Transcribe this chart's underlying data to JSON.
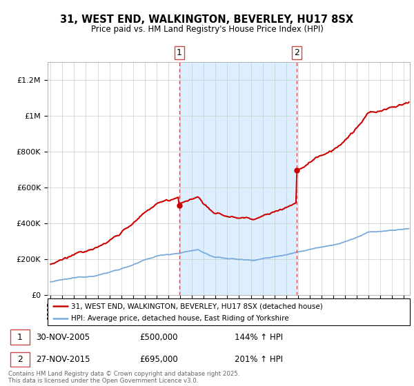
{
  "title_line1": "31, WEST END, WALKINGTON, BEVERLEY, HU17 8SX",
  "title_line2": "Price paid vs. HM Land Registry's House Price Index (HPI)",
  "ylabel_ticks": [
    "£0",
    "£200K",
    "£400K",
    "£600K",
    "£800K",
    "£1M",
    "£1.2M"
  ],
  "ytick_values": [
    0,
    200000,
    400000,
    600000,
    800000,
    1000000,
    1200000
  ],
  "ylim": [
    0,
    1300000
  ],
  "xlim_start": 1994.75,
  "xlim_end": 2025.5,
  "sale1_x": 2005.916,
  "sale1_y": 500000,
  "sale2_x": 2015.916,
  "sale2_y": 695000,
  "sale_color": "#cc0000",
  "hpi_color": "#7aaadd",
  "shading_color": "#ddeeff",
  "dashed_line_color": "#cc4444",
  "legend_line1": "31, WEST END, WALKINGTON, BEVERLEY, HU17 8SX (detached house)",
  "legend_line2": "HPI: Average price, detached house, East Riding of Yorkshire",
  "annotation1_date": "30-NOV-2005",
  "annotation1_price": "£500,000",
  "annotation1_hpi": "144% ↑ HPI",
  "annotation2_date": "27-NOV-2015",
  "annotation2_price": "£695,000",
  "annotation2_hpi": "201% ↑ HPI",
  "footnote": "Contains HM Land Registry data © Crown copyright and database right 2025.\nThis data is licensed under the Open Government Licence v3.0."
}
